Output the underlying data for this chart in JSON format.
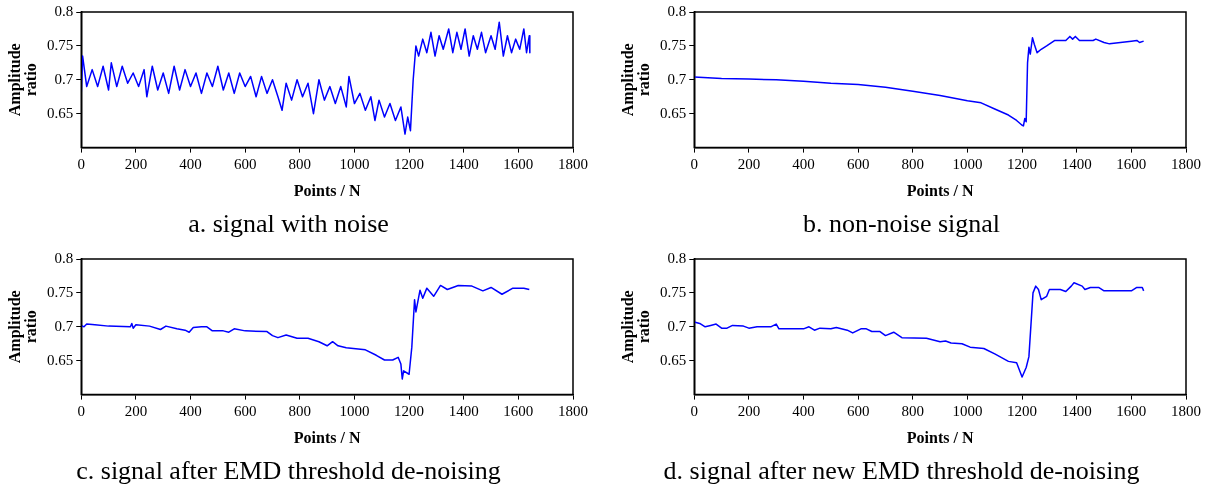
{
  "chart_data": [
    {
      "type": "line",
      "title": "a. signal with noise",
      "xlabel": "Points / N",
      "ylabel": "Amplitude ratio",
      "xlim": [
        0,
        1800
      ],
      "xticks": [
        0,
        200,
        400,
        600,
        800,
        1000,
        1200,
        1400,
        1600,
        1800
      ],
      "ylim": [
        0.6,
        0.8
      ],
      "yticks": [
        0.65,
        0.7,
        0.75,
        0.8
      ],
      "grid": false,
      "legend": false,
      "x": [
        0,
        5,
        20,
        40,
        60,
        80,
        100,
        110,
        130,
        150,
        170,
        190,
        210,
        230,
        240,
        260,
        280,
        300,
        320,
        340,
        360,
        380,
        400,
        420,
        440,
        460,
        480,
        500,
        520,
        540,
        560,
        580,
        600,
        620,
        640,
        660,
        680,
        700,
        720,
        735,
        750,
        770,
        790,
        810,
        830,
        850,
        870,
        890,
        910,
        930,
        950,
        970,
        980,
        1000,
        1020,
        1040,
        1060,
        1075,
        1090,
        1110,
        1130,
        1150,
        1170,
        1185,
        1195,
        1205,
        1215,
        1225,
        1235,
        1250,
        1265,
        1280,
        1295,
        1310,
        1325,
        1345,
        1360,
        1375,
        1390,
        1405,
        1420,
        1435,
        1450,
        1465,
        1480,
        1500,
        1515,
        1530,
        1545,
        1560,
        1575,
        1590,
        1605,
        1620,
        1630,
        1640,
        1642
      ],
      "series": [
        {
          "color": "#0000ff",
          "values": [
            0.68,
            0.735,
            0.69,
            0.715,
            0.69,
            0.72,
            0.685,
            0.725,
            0.69,
            0.72,
            0.695,
            0.71,
            0.69,
            0.715,
            0.675,
            0.72,
            0.685,
            0.71,
            0.68,
            0.72,
            0.685,
            0.715,
            0.69,
            0.71,
            0.68,
            0.71,
            0.69,
            0.72,
            0.685,
            0.71,
            0.68,
            0.71,
            0.69,
            0.705,
            0.675,
            0.705,
            0.68,
            0.7,
            0.675,
            0.655,
            0.695,
            0.67,
            0.7,
            0.675,
            0.695,
            0.65,
            0.7,
            0.67,
            0.69,
            0.665,
            0.69,
            0.66,
            0.705,
            0.665,
            0.68,
            0.655,
            0.675,
            0.64,
            0.67,
            0.645,
            0.665,
            0.64,
            0.66,
            0.62,
            0.645,
            0.625,
            0.7,
            0.75,
            0.735,
            0.76,
            0.74,
            0.77,
            0.735,
            0.765,
            0.745,
            0.775,
            0.74,
            0.77,
            0.745,
            0.775,
            0.735,
            0.765,
            0.745,
            0.77,
            0.74,
            0.765,
            0.745,
            0.785,
            0.735,
            0.765,
            0.74,
            0.76,
            0.745,
            0.775,
            0.74,
            0.765,
            0.74
          ]
        }
      ]
    },
    {
      "type": "line",
      "title": "b. non-noise signal",
      "xlabel": "Points / N",
      "ylabel": "Amplitude ratio",
      "xlim": [
        0,
        1800
      ],
      "xticks": [
        0,
        200,
        400,
        600,
        800,
        1000,
        1200,
        1400,
        1600,
        1800
      ],
      "ylim": [
        0.6,
        0.8
      ],
      "yticks": [
        0.65,
        0.7,
        0.75,
        0.8
      ],
      "grid": false,
      "legend": false,
      "x": [
        0,
        100,
        200,
        300,
        400,
        500,
        600,
        700,
        800,
        900,
        1000,
        1050,
        1100,
        1150,
        1180,
        1200,
        1205,
        1210,
        1215,
        1220,
        1225,
        1230,
        1238,
        1245,
        1255,
        1270,
        1290,
        1320,
        1360,
        1375,
        1385,
        1395,
        1410,
        1460,
        1470,
        1500,
        1520,
        1560,
        1600,
        1620,
        1630,
        1645
      ],
      "series": [
        {
          "color": "#0000ff",
          "values": [
            0.704,
            0.702,
            0.701,
            0.7,
            0.698,
            0.695,
            0.693,
            0.689,
            0.683,
            0.677,
            0.669,
            0.666,
            0.657,
            0.648,
            0.64,
            0.633,
            0.632,
            0.643,
            0.638,
            0.725,
            0.748,
            0.738,
            0.762,
            0.752,
            0.74,
            0.745,
            0.75,
            0.758,
            0.758,
            0.764,
            0.76,
            0.764,
            0.758,
            0.758,
            0.76,
            0.755,
            0.753,
            0.755,
            0.757,
            0.758,
            0.755,
            0.757
          ]
        }
      ]
    },
    {
      "type": "line",
      "title": "c. signal after EMD threshold de-noising",
      "xlabel": "Points / N",
      "ylabel": "Amplitude ratio",
      "xlim": [
        0,
        1800
      ],
      "xticks": [
        0,
        200,
        400,
        600,
        800,
        1000,
        1200,
        1400,
        1600,
        1800
      ],
      "ylim": [
        0.6,
        0.8
      ],
      "yticks": [
        0.65,
        0.7,
        0.75,
        0.8
      ],
      "grid": false,
      "legend": false,
      "x": [
        0,
        10,
        20,
        50,
        100,
        180,
        185,
        190,
        200,
        250,
        290,
        310,
        350,
        380,
        395,
        410,
        440,
        460,
        480,
        520,
        540,
        560,
        600,
        680,
        700,
        720,
        750,
        790,
        830,
        870,
        900,
        920,
        940,
        970,
        1040,
        1080,
        1110,
        1140,
        1160,
        1170,
        1175,
        1180,
        1200,
        1210,
        1220,
        1225,
        1240,
        1250,
        1265,
        1290,
        1315,
        1340,
        1380,
        1430,
        1470,
        1500,
        1540,
        1580,
        1620,
        1640
      ],
      "series": [
        {
          "color": "#0000ff",
          "values": [
            0.702,
            0.7,
            0.704,
            0.703,
            0.701,
            0.7,
            0.705,
            0.698,
            0.703,
            0.701,
            0.696,
            0.701,
            0.697,
            0.695,
            0.692,
            0.699,
            0.7,
            0.7,
            0.694,
            0.694,
            0.692,
            0.697,
            0.694,
            0.693,
            0.687,
            0.684,
            0.688,
            0.683,
            0.683,
            0.678,
            0.672,
            0.678,
            0.672,
            0.669,
            0.666,
            0.658,
            0.651,
            0.651,
            0.655,
            0.645,
            0.623,
            0.635,
            0.63,
            0.67,
            0.74,
            0.722,
            0.754,
            0.742,
            0.757,
            0.745,
            0.761,
            0.755,
            0.761,
            0.76,
            0.753,
            0.758,
            0.748,
            0.757,
            0.757,
            0.755
          ]
        }
      ]
    },
    {
      "type": "line",
      "title": "d. signal after new EMD threshold de-noising",
      "xlabel": "Points / N",
      "ylabel": "Amplitude ratio",
      "xlim": [
        0,
        1800
      ],
      "xticks": [
        0,
        200,
        400,
        600,
        800,
        1000,
        1200,
        1400,
        1600,
        1800
      ],
      "ylim": [
        0.6,
        0.8
      ],
      "yticks": [
        0.65,
        0.7,
        0.75,
        0.8
      ],
      "grid": false,
      "legend": false,
      "x": [
        0,
        20,
        40,
        60,
        80,
        100,
        120,
        140,
        180,
        200,
        230,
        280,
        300,
        310,
        400,
        420,
        440,
        460,
        500,
        520,
        560,
        580,
        610,
        630,
        650,
        680,
        700,
        730,
        760,
        850,
        900,
        920,
        940,
        980,
        1010,
        1060,
        1100,
        1150,
        1180,
        1200,
        1215,
        1225,
        1240,
        1250,
        1260,
        1270,
        1290,
        1300,
        1340,
        1360,
        1380,
        1390,
        1420,
        1430,
        1450,
        1480,
        1500,
        1600,
        1620,
        1640,
        1645
      ],
      "series": [
        {
          "color": "#0000ff",
          "values": [
            0.707,
            0.705,
            0.7,
            0.702,
            0.704,
            0.698,
            0.698,
            0.702,
            0.701,
            0.698,
            0.7,
            0.7,
            0.704,
            0.697,
            0.697,
            0.7,
            0.695,
            0.698,
            0.697,
            0.699,
            0.695,
            0.691,
            0.697,
            0.697,
            0.693,
            0.693,
            0.687,
            0.692,
            0.684,
            0.683,
            0.678,
            0.679,
            0.676,
            0.675,
            0.67,
            0.668,
            0.66,
            0.649,
            0.647,
            0.626,
            0.64,
            0.656,
            0.75,
            0.76,
            0.755,
            0.74,
            0.745,
            0.755,
            0.755,
            0.752,
            0.76,
            0.765,
            0.76,
            0.755,
            0.758,
            0.758,
            0.753,
            0.753,
            0.758,
            0.758,
            0.753
          ]
        }
      ]
    }
  ]
}
